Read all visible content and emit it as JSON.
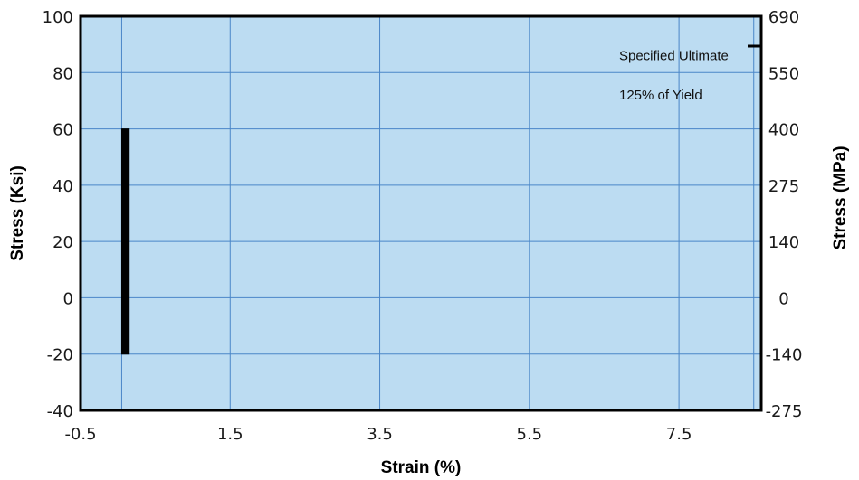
{
  "chart_data": {
    "type": "line",
    "title": "",
    "xlabel": "Strain (%)",
    "ylabel": "Stress (Ksi)",
    "y2label": "Stress (MPa)",
    "xlim": [
      -0.5,
      8.6
    ],
    "ylim": [
      -40,
      100
    ],
    "x_ticks": [
      "-0.5",
      "1.5",
      "3.5",
      "5.5",
      "7.5"
    ],
    "y_ticks": [
      "-40",
      "-20",
      "0",
      "20",
      "40",
      "60",
      "80",
      "100"
    ],
    "y2_ticks": [
      "-275",
      "-140",
      "0",
      "140",
      "275",
      "400",
      "550",
      "690"
    ],
    "grid": true,
    "background_color": "#bcdcf2",
    "grid_color": "#4a86c8",
    "series": [
      {
        "color": "#000000",
        "points": [
          {
            "x": 0.05,
            "y": -20
          },
          {
            "x": 0.05,
            "y": 60
          },
          {
            "x": 0.15,
            "y": 60
          },
          {
            "x": 0.15,
            "y": -20
          }
        ]
      }
    ],
    "annotations": [
      {
        "text": "Specified Ultimate",
        "x": 6.7,
        "y": 84.5
      },
      {
        "text": "125% of Yield",
        "x": 6.7,
        "y": 70.5
      }
    ]
  }
}
